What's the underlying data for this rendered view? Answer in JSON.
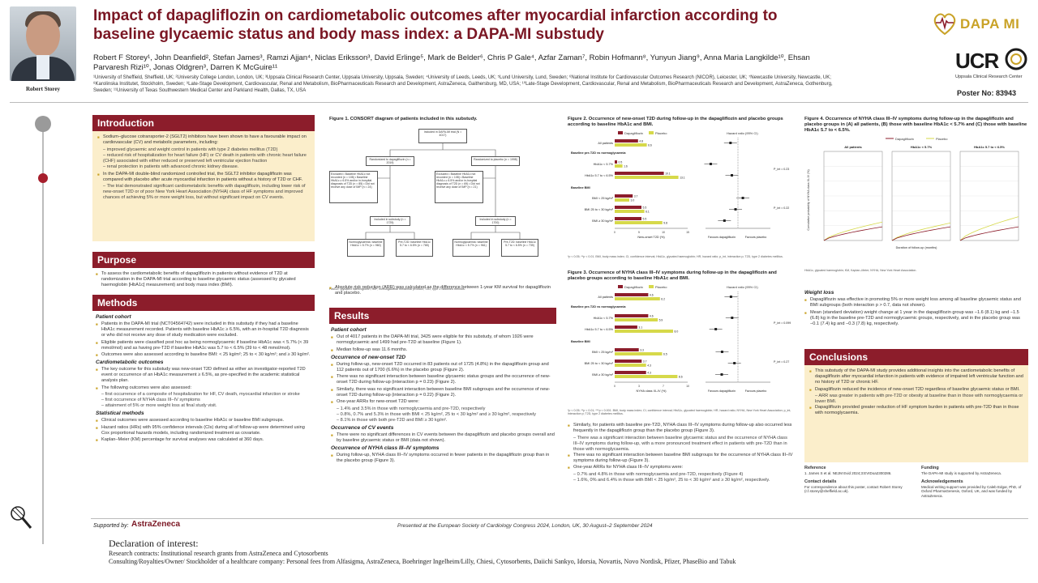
{
  "header": {
    "title": "Impact of dapagliflozin on cardiometabolic outcomes after myocardial infarction according to baseline glycaemic status and body mass index: a DAPA-MI substudy",
    "authors": "Robert F Storey¹, John Deanfield², Stefan James³, Ramzi Ajjan⁴, Niclas Eriksson³, David Erlinge⁵, Mark de Belder⁶, Chris P Gale⁴, Azfar Zaman⁷, Robin Hofmann⁸, Yunyun Jiang⁹, Anna Maria Langkilde¹⁰, Ehsan Parvaresh Rizi¹⁰, Jonas Oldgren³, Darren K McGuire¹¹",
    "affiliations": "¹University of Sheffield, Sheffield, UK; ²University College London, London, UK; ³Uppsala Clinical Research Center, Uppsala University, Uppsala, Sweden; ⁴University of Leeds, Leeds, UK; ⁵Lund University, Lund, Sweden; ⁶National Institute for Cardiovascular Outcomes Research (NICOR), Leicester, UK; ⁷Newcastle University, Newcastle, UK; ⁸Karolinska Institutet, Stockholm, Sweden; ⁹Late-Stage Development, Cardiovascular, Renal and Metabolism, BioPharmaceuticals Research and Development, AstraZeneca, Gaithersburg, MD, USA; ¹⁰Late-Stage Development, Cardiovascular, Renal and Metabolism, BioPharmaceuticals Research and Development, AstraZeneca, Gothenburg, Sweden; ¹¹University of Texas Southwestern Medical Center and Parkland Health, Dallas, TX, USA",
    "speaker_name": "Robert Storey",
    "logo_dapa": "DAPA MI",
    "logo_ucr": "UCR",
    "logo_ucr_sub": "Uppsala Clinical Research Center",
    "poster_no": "Poster No: 83943"
  },
  "introduction": {
    "heading": "Introduction",
    "b1": "Sodium–glucose cotransporter-2 (SGLT2) inhibitors have been shown to have a favourable impact on cardiovascular (CV) and metabolic parameters, including:",
    "b1a": "– improved glycaemic and weight control in patients with type 2 diabetes mellitus (T2D)",
    "b1b": "– reduced risk of hospitalization for heart failure (HF) or CV death in patients with chronic heart failure (CHF) associated with either reduced or preserved left ventricular ejection fraction",
    "b1c": "– renal protection in patients with advanced chronic kidney disease.",
    "b2": "In the DAPA-MI double-blind randomized controlled trial, the SGLT2 inhibitor dapagliflozin was compared with placebo after acute myocardial infarction in patients without a history of T2D or CHF.",
    "b2a": "– The trial demonstrated significant cardiometabolic benefits with dapagliflozin, including lower risk of new-onset T2D or of poor New York Heart Association (NYHA) class of HF symptoms and improved chances of achieving 5% or more weight loss, but without significant impact on CV events."
  },
  "purpose": {
    "heading": "Purpose",
    "b1": "To assess the cardiometabolic benefits of dapagliflozin in patients without evidence of T2D at randomization in the DAPA-MI trial according to baseline glycaemic status (assessed by glycated haemoglobin [HbA1c] measurement) and body mass index (BMI)."
  },
  "methods": {
    "heading": "Methods",
    "h1": "Patient cohort",
    "b1": "Patients in the DAPA-MI trial (NCT04564742) were included in this substudy if they had a baseline HbA1c measurement recorded. Patients with baseline HbA1c ≥ 6.5%, with an in-hospital T2D diagnosis or who did not receive any dose of study medication were excluded.",
    "b2": "Eligible patients were classified post hoc as being normoglycaemic if baseline HbA1c was < 5.7% (< 39 mmol/mol) and as having pre-T2D if baseline HbA1c was 5.7 to < 6.5% (39 to < 48 mmol/mol).",
    "b3": "Outcomes were also assessed according to baseline BMI: < 25 kg/m²; 25 to < 30 kg/m²; and ≥ 30 kg/m².",
    "h2": "Cardiometabolic outcomes",
    "b4": "The key outcome for this substudy was new-onset T2D defined as either an investigator-reported T2D event or occurrence of an HbA1c measurement ≥ 6.5%, as pre-specified in the academic statistical analysis plan.",
    "b5": "The following outcomes were also assessed:",
    "b5a": "– first occurrence of a composite of hospitalization for HF, CV death, myocardial infarction or stroke",
    "b5b": "– first occurrence of NYHA class III–IV symptoms",
    "b5c": "– attainment of 5% or more weight loss at final study visit.",
    "h3": "Statistical methods",
    "b6": "Clinical outcomes were assessed according to baseline HbA1c or baseline BMI subgroups.",
    "b7": "Hazard ratios (HRs) with 95% confidence intervals (CIs) during all of follow-up were determined using Cox proportional hazards models, including randomized treatment as covariate.",
    "b8": "Kaplan–Meier (KM) percentage for survival analyses was calculated at 360 days."
  },
  "figure1": {
    "title": "Figure 1. CONSORT diagram of patients included in this substudy.",
    "n_top": "Included in DAPA-MI trial (N = 4017)",
    "rand_dapa": "Randomized to dapagliflozin (n = 2019)",
    "rand_plac": "Randomized to placebo (n = 1998)",
    "excl_dapa": "Excluded • Baseline HbA1c not recorded (n = 108) • Baseline HbA1c ≥ 6.5% and/or in-hospital diagnosis of T2D (n = 85) • Did not receive any dose of IMP (n = 24)",
    "excl_plac": "Excluded • Baseline HbA1c not recorded (n = 108) • Baseline HbA1c ≥ 6.5% and/or in-hospital diagnosis of T2D (n = 69) • Did not receive any dose of IMP (n = 21)",
    "incl_dapa": "Included in substudy (n = 1725)",
    "incl_plac": "Included in substudy (n = 1700)",
    "norm_dapa": "Normoglycaemia: baseline HbA1c < 5.7% (n = 960)",
    "pre_dapa": "Pre-T2D: baseline HbA1c 5.7 to < 6.5% (n = 765)",
    "norm_plac": "Normoglycaemia: baseline HbA1c < 5.7% (n = 961)",
    "pre_plac": "Pre-T2D: baseline HbA1c 5.7 to < 6.5% (n = 739)",
    "footnote": "HbA1c, glycated haemoglobin; IMP, investigational medicinal product; T2D, type 2 diabetes mellitus."
  },
  "arr_note": "Absolute risk reduction (ARR) was calculated as the difference between 1-year KM survival for dapagliflozin and placebo.",
  "results": {
    "heading": "Results",
    "h1": "Patient cohort",
    "b1": "Out of 4017 patients in the DAPA-MI trial, 3425 were eligible for this substudy, of whom 1926 were normoglycaemic and 1499 had pre-T2D at baseline (Figure 1).",
    "b2": "Median follow-up was 11.6 months.",
    "h2": "Occurrence of new-onset T2D",
    "b3": "During follow-up, new-onset T2D occurred in 83 patients out of 1725 (4.8%) in the dapagliflozin group and 112 patients out of 1700 (6.6%) in the placebo group (Figure 2).",
    "b4": "There was no significant interaction between baseline glycaemic status groups and the occurrence of new-onset T2D during follow-up (interaction p = 0.23) (Figure 2).",
    "b5": "Similarly, there was no significant interaction between baseline BMI subgroups and the occurrence of new-onset T2D during follow-up (interaction p = 0.22) (Figure 2).",
    "b6": "One-year ARRs for new-onset T2D were:",
    "b6a": "– 1.4% and 3.5% in those with normoglycaemia and pre-T2D, respectively",
    "b6b": "– 0.8%, 0.7% and 5.3% in those with BMI < 25 kg/m², 25 to < 30 kg/m² and ≥ 30 kg/m², respectively",
    "b6c": "– 8.1% in those with both pre-T2D and BMI ≥ 30 kg/m².",
    "h3": "Occurrence of CV events",
    "b7": "There were no significant differences in CV events between the dapagliflozin and placebo groups overall and by baseline glycaemic status or BMI (data not shown).",
    "h4": "Occurrence of NYHA class III–IV symptoms",
    "b8": "During follow-up, NYHA class III–IV symptoms occurred in fewer patients in the dapagliflozin group than in the placebo group (Figure 3)."
  },
  "figure2": {
    "title": "Figure 2. Occurrence of new-onset T2D during follow-up in the dapagliflozin and placebo groups according to baseline HbA1c and BMI.",
    "legend_dapa": "Dapagliflozin",
    "legend_plac": "Placebo",
    "hr_header": "Hazard ratio (95% CI)",
    "xlabel": "New-onset T2D (%)",
    "fav_dapa": "Favours dapagliflozin",
    "fav_plac": "Favours placebo",
    "footnote": "*p < 0.05; **p < 0.01. BMI, body mass index; CI, confidence interval; HbA1c, glycated haemoglobin; HR, hazard ratio; p_int, interaction p; T2D, type 2 diabetes mellitus.",
    "p1": "P_int = 0.23",
    "p2": "P_int = 0.22",
    "group_hba1c": "Baseline pre-T2D vs normoglycaemia",
    "group_bmi": "Baseline BMI",
    "rows": [
      {
        "label": "All patients",
        "d": 4.8,
        "p": 6.6
      },
      {
        "label": "HbA1c < 5.7%",
        "d": 0.5,
        "p": 1.6
      },
      {
        "label": "HbA1c 5.7 to < 6.5%",
        "d": 10.1,
        "p": 13.1
      },
      {
        "label": "BMI < 25 kg/m²",
        "d": 3.7,
        "p": 3.0
      },
      {
        "label": "BMI 25 to < 30 kg/m²",
        "d": 5.5,
        "p": 6.1
      },
      {
        "label": "BMI ≥ 30 kg/m²",
        "d": 5.5,
        "p": 9.8
      }
    ]
  },
  "figure3": {
    "title": "Figure 3. Occurrence of NYHA class III–IV symptoms during follow-up in the dapagliflozin and placebo groups according to baseline HbA1c and BMI.",
    "xlabel": "NYHA class III–IV (%)",
    "p1": "P_int = 0.099",
    "p2": "P_int = 0.27",
    "footnote": "*p < 0.05; **p < 0.01; ***p < 0.001. BMI, body mass index; CI, confidence interval; HbA1c, glycated haemoglobin; HR, hazard ratio; NYHA, New York Heart Association; p_int, interaction p; T2D, type 2 diabetes mellitus.",
    "rows": [
      {
        "label": "All patients",
        "d": 4.6,
        "p": 6.2
      },
      {
        "label": "HbA1c < 5.7%",
        "d": 4.6,
        "p": 5.9
      },
      {
        "label": "HbA1c 5.7 to < 6.5%",
        "d": 3.1,
        "p": 8.0
      },
      {
        "label": "BMI < 25 kg/m²",
        "d": 3.3,
        "p": 6.5
      },
      {
        "label": "BMI 25 to < 30 kg/m²",
        "d": 3.7,
        "p": 4.3
      },
      {
        "label": "BMI ≥ 30 kg/m²",
        "d": 4.3,
        "p": 8.6
      }
    ]
  },
  "fig3_text": {
    "b1": "Similarly, for patients with baseline pre-T2D, NYHA class III–IV symptoms during follow-up also occurred less frequently in the dapagliflozin group than the placebo group (Figure 3).",
    "b1a": "– There was a significant interaction between baseline glycaemic status and the occurrence of NYHA class III–IV symptoms during follow-up, with a more pronounced treatment effect in patients with pre-T2D than in those with normoglycaemia.",
    "b2": "There was no significant interaction between baseline BMI subgroups for the occurrence of NYHA class III–IV symptoms during follow-up (Figure 3).",
    "b3": "One-year ARRs for NYHA class III–IV symptoms were:",
    "b3a": "– 0.7% and 4.8% in those with normoglycaemia and pre-T2D, respectively (Figure 4)",
    "b3b": "– 1.6%, 0% and 6.4% in those with BMI < 25 kg/m², 25 to < 30 kg/m² and ≥ 30 kg/m², respectively."
  },
  "figure4": {
    "title": "Figure 4. Occurrence of NYHA class III–IV symptoms during follow-up in the dapagliflozin and placebo groups in (A) all patients, (B) those with baseline HbA1c < 5.7% and (C) those with baseline HbA1c 5.7 to < 6.5%.",
    "panel_a": "All patients",
    "panel_b": "HbA1c < 5.7%",
    "panel_c": "HbA1c 5.7 to < 6.5%",
    "ylabel": "Cumulative probability of NYHA class III–IV (%)",
    "xlabel": "Duration of follow-up (months)",
    "footnote": "HbA1c, glycated haemoglobin; KM, Kaplan–Meier; NYHA, New York Heart Association."
  },
  "weight": {
    "heading": "Weight loss",
    "b1": "Dapagliflozin was effective in promoting 5% or more weight loss among all baseline glycaemic status and BMI subgroups (both interaction p > 0.7, data not shown).",
    "b2": "Mean (standard deviation) weight change at 1 year in the dapagliflozin group was −1.6 (8.1) kg and −1.5 (6.8) kg in the baseline pre-T2D and normoglycaemic groups, respectively, and in the placebo group was −0.1 (7.4) kg and −0.3 (7.8) kg, respectively."
  },
  "conclusions": {
    "heading": "Conclusions",
    "b1": "This substudy of the DAPA-MI study provides additional insights into the cardiometabolic benefits of dapagliflozin after myocardial infarction in patients with evidence of impaired left ventricular function and no history of T2D or chronic HF.",
    "b2": "Dapagliflozin reduced the incidence of new-onset T2D regardless of baseline glycaemic status or BMI.",
    "b2a": "– ARR was greater in patients with pre-T2D or obesity at baseline than in those with normoglycaemia or lower BMI.",
    "b3": "Dapagliflozin provided greater reduction of HF symptom burden in patients with pre-T2D than in those with normoglycaemia."
  },
  "footer": {
    "ref_h": "Reference",
    "ref": "1. James S et al. NEJM Evid 2024;3:EVIDoa2300286.",
    "contact_h": "Contact details",
    "contact": "For correspondence about this poster, contact Robert Storey (r.f.storey@sheffield.ac.uk).",
    "funding_h": "Funding",
    "funding": "The DAPA-MI study is supported by AstraZeneca.",
    "ack_h": "Acknowledgements",
    "ack": "Medical writing support was provided by Caleb Edgar, PhD, of Oxford PharmaGenesis, Oxford, UK, and was funded by AstraZeneca.",
    "supported": "Supported by:",
    "astrazeneca": "AstraZeneca",
    "presented": "Presented at the European Society of Cardiology Congress 2024, London, UK, 30 August–2 September 2024"
  },
  "declaration": {
    "heading": "Declaration of interest:",
    "l1": "Research contracts: Institutional research grants from AstraZeneca and Cytosorbents",
    "l2": "Consulting/Royalties/Owner/ Stockholder of a healthcare company: Personal fees from Alfasigma, AstraZeneca, Boehringer Ingelheim/Lilly, Chiesi, Cytosorbents, Daiichi Sankyo, Idorsia, Novartis, Novo Nordisk, Pfizer, PhaseBio and Tabuk"
  },
  "colors": {
    "dapa": "#8c1d2b",
    "placebo": "#d6d94a",
    "accent": "#8c1d2b",
    "intro_bg": "#fbeecb"
  }
}
